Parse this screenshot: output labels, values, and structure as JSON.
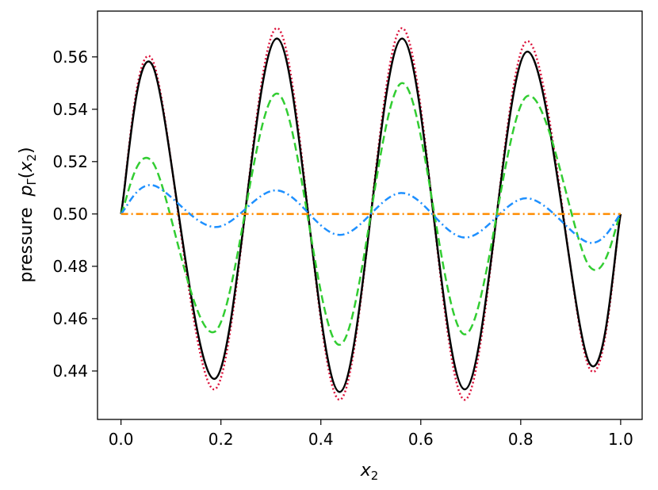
{
  "chart_data": {
    "type": "line",
    "xlabel_base": "x",
    "xlabel_sub": "2",
    "ylabel_prefix": "pressure  ",
    "ylabel_var": "p",
    "ylabel_sub": "Γ",
    "ylabel_paren_open": "(",
    "ylabel_arg": "x",
    "ylabel_arg_sub": "2",
    "ylabel_paren_close": ")",
    "xlim": [
      -0.047,
      1.043
    ],
    "ylim": [
      0.4215,
      0.5775
    ],
    "xticks": [
      0.0,
      0.2,
      0.4,
      0.6,
      0.8,
      1.0
    ],
    "xtick_labels": [
      "0.0",
      "0.2",
      "0.4",
      "0.6",
      "0.8",
      "1.0"
    ],
    "yticks": [
      0.44,
      0.46,
      0.48,
      0.5,
      0.52,
      0.54,
      0.56
    ],
    "ytick_labels": [
      "0.44",
      "0.46",
      "0.48",
      "0.50",
      "0.52",
      "0.54",
      "0.56"
    ],
    "grid": false,
    "legend": "none",
    "series": [
      {
        "color": "#dc143c",
        "style": "dotted",
        "x": [
          0.0,
          0.0625,
          0.1875,
          0.3125,
          0.4375,
          0.5625,
          0.6875,
          0.8125,
          0.9375,
          1.0
        ],
        "y": [
          0.5,
          0.559,
          0.433,
          0.571,
          0.429,
          0.571,
          0.429,
          0.566,
          0.441,
          0.5
        ]
      },
      {
        "color": "#000000",
        "style": "solid",
        "x": [
          0.0,
          0.0625,
          0.1875,
          0.3125,
          0.4375,
          0.5625,
          0.6875,
          0.8125,
          0.9375,
          1.0
        ],
        "y": [
          0.5,
          0.557,
          0.437,
          0.567,
          0.432,
          0.567,
          0.433,
          0.562,
          0.443,
          0.5
        ]
      },
      {
        "color": "#32cd32",
        "style": "dashed",
        "x": [
          0.0,
          0.0625,
          0.1875,
          0.3125,
          0.4375,
          0.5625,
          0.6875,
          0.8125,
          0.9375,
          1.0
        ],
        "y": [
          0.5,
          0.52,
          0.455,
          0.546,
          0.45,
          0.55,
          0.454,
          0.545,
          0.48,
          0.5
        ]
      },
      {
        "color": "#1e90ff",
        "style": "dashdot",
        "x": [
          0.0,
          0.0625,
          0.1875,
          0.3125,
          0.4375,
          0.5625,
          0.6875,
          0.8125,
          0.9375,
          1.0
        ],
        "y": [
          0.5,
          0.511,
          0.495,
          0.509,
          0.492,
          0.508,
          0.491,
          0.506,
          0.489,
          0.5
        ]
      },
      {
        "color": "#ff8c00",
        "style": "dashdot",
        "x": [
          0.0,
          1.0
        ],
        "y": [
          0.5,
          0.5
        ]
      }
    ]
  }
}
